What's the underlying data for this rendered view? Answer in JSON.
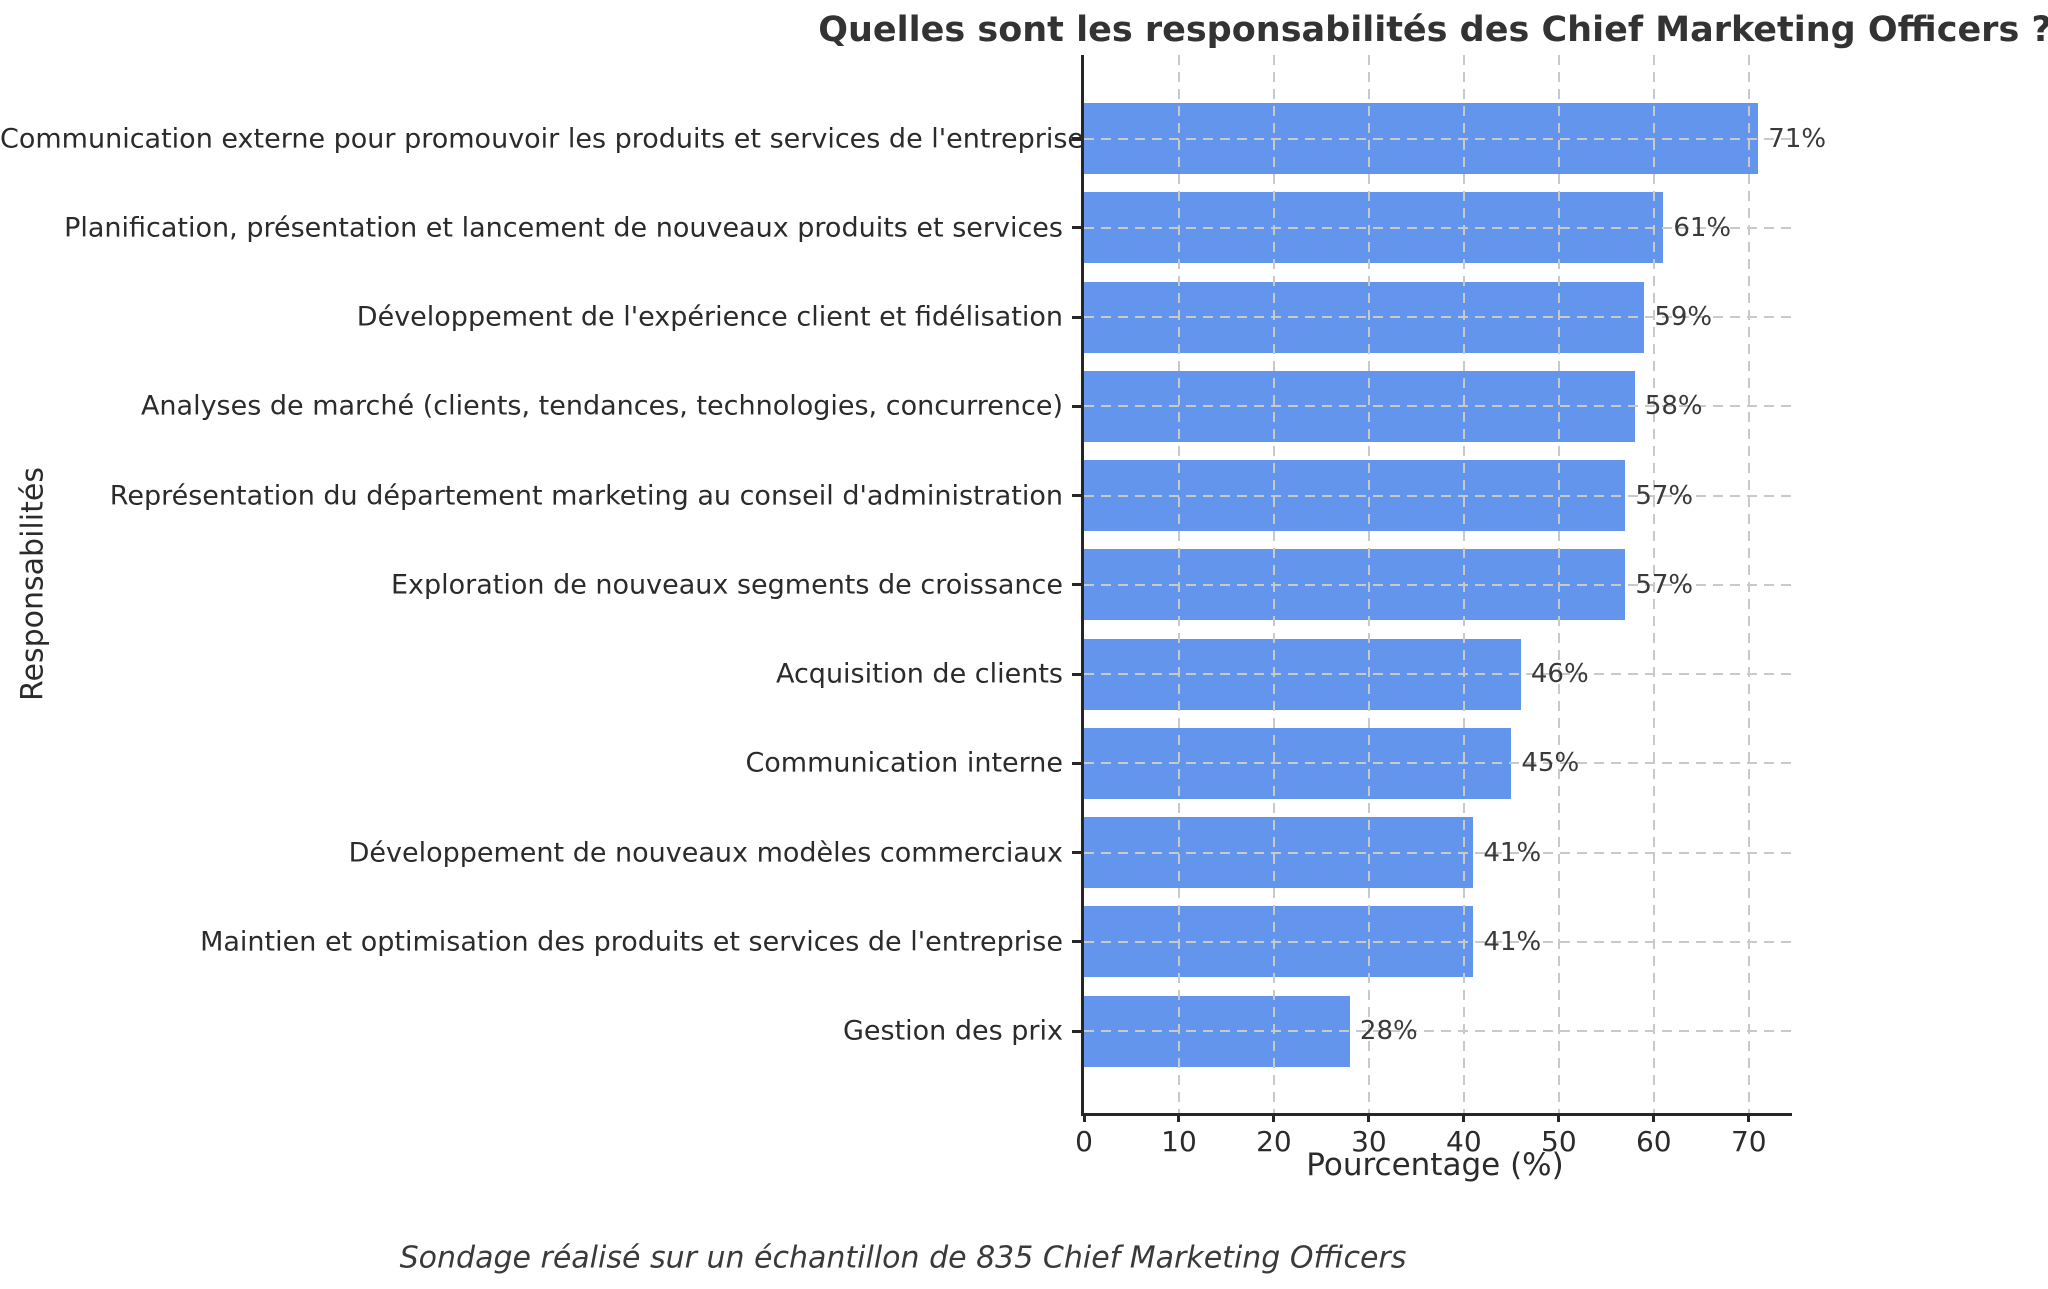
{
  "title": "Quelles sont les responsabilités des Chief Marketing Officers ?",
  "footer": "Sondage réalisé sur un échantillon de 835 Chief Marketing Officers",
  "colors": {
    "bar": "#6495ED",
    "grid": "#c9c9c9",
    "spine": "#262626",
    "title_text": "#333333",
    "text": "#2b2b2b"
  },
  "chart_data": {
    "type": "bar",
    "orientation": "horizontal",
    "title": "Quelles sont les responsabilités des Chief Marketing Officers ?",
    "xlabel": "Pourcentage (%)",
    "ylabel": "Responsabilités",
    "categories": [
      "Communication externe pour promouvoir les produits et services de l'entreprise",
      "Planification, présentation et lancement de nouveaux produits et services",
      "Développement de l'expérience client et fidélisation",
      "Analyses de marché (clients, tendances, technologies, concurrence)",
      "Représentation du département marketing au conseil d'administration",
      "Exploration de nouveaux segments de croissance",
      "Acquisition de clients",
      "Communication interne",
      "Développement de nouveaux modèles commerciaux",
      "Maintien et optimisation des produits et services de l'entreprise",
      "Gestion des prix"
    ],
    "values": [
      71,
      61,
      59,
      58,
      57,
      57,
      46,
      45,
      41,
      41,
      28
    ],
    "value_labels": [
      "71%",
      "61%",
      "59%",
      "58%",
      "57%",
      "57%",
      "46%",
      "45%",
      "41%",
      "41%",
      "28%"
    ],
    "xlim": [
      0,
      74.55
    ],
    "xticks": [
      0,
      10,
      20,
      30,
      40,
      50,
      60,
      70
    ],
    "xtick_labels": [
      "0",
      "10",
      "20",
      "30",
      "40",
      "50",
      "60",
      "70"
    ],
    "grid": "dashed gridlines on both axes, drawn over bars",
    "legend": "none",
    "annotation": "Sondage réalisé sur un échantillon de 835 Chief Marketing Officers"
  }
}
